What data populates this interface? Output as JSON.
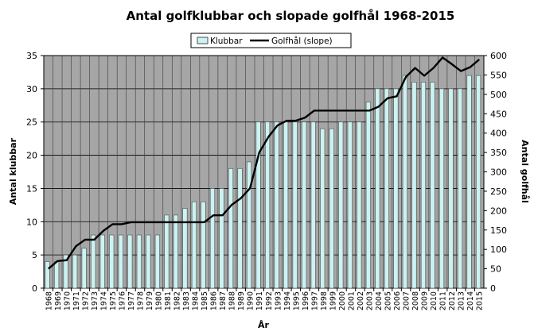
{
  "chart_data": {
    "type": "bar",
    "title": "Antal golfklubbar och slopade golfhål 1968-2015",
    "xlabel": "År",
    "ylabel": "Antal klubbar",
    "y2label": "Antal golfhål",
    "ylim": [
      0,
      35
    ],
    "y2lim": [
      0,
      600
    ],
    "yticks": [
      0,
      5,
      10,
      15,
      20,
      25,
      30,
      35
    ],
    "y2ticks": [
      0,
      50,
      100,
      150,
      200,
      250,
      300,
      350,
      400,
      450,
      500,
      550,
      600
    ],
    "grid": true,
    "legend_position": "top",
    "colors": {
      "plot_background": "#a6a6a6",
      "bar_fill": "#ccf2f2",
      "bar_stroke": "#4d4d4d",
      "line": "#000000",
      "grid": "#000000"
    },
    "categories": [
      "1968",
      "1969",
      "1970",
      "1971",
      "1972",
      "1973",
      "1974",
      "1975",
      "1976",
      "1977",
      "1978",
      "1979",
      "1980",
      "1981",
      "1982",
      "1983",
      "1984",
      "1985",
      "1986",
      "1987",
      "1988",
      "1989",
      "1990",
      "1991",
      "1992",
      "1993",
      "1994",
      "1995",
      "1996",
      "1997",
      "1998",
      "1999",
      "2000",
      "2001",
      "2002",
      "2003",
      "2004",
      "2005",
      "2006",
      "2007",
      "2008",
      "2009",
      "2010",
      "2011",
      "2012",
      "2013",
      "2014",
      "2015"
    ],
    "series": [
      {
        "name": "Klubbar",
        "type": "bar",
        "axis": "left",
        "values": [
          4,
          4,
          5,
          5,
          6,
          8,
          8,
          8,
          8,
          8,
          8,
          8,
          8,
          11,
          11,
          12,
          13,
          13,
          15,
          15,
          18,
          18,
          19,
          25,
          25,
          25,
          25,
          25,
          25,
          25,
          24,
          24,
          25,
          25,
          25,
          28,
          30,
          30,
          30,
          32,
          31,
          31,
          31,
          30,
          30,
          30,
          32,
          32
        ]
      },
      {
        "name": "Golfhål (slope)",
        "type": "line",
        "axis": "right",
        "values": [
          50,
          70,
          72,
          108,
          125,
          125,
          148,
          165,
          165,
          170,
          170,
          170,
          170,
          170,
          170,
          170,
          170,
          170,
          188,
          188,
          215,
          232,
          258,
          350,
          390,
          420,
          432,
          432,
          440,
          458,
          458,
          458,
          458,
          458,
          458,
          458,
          468,
          490,
          495,
          545,
          568,
          548,
          568,
          595,
          578,
          560,
          570,
          590
        ]
      }
    ]
  }
}
